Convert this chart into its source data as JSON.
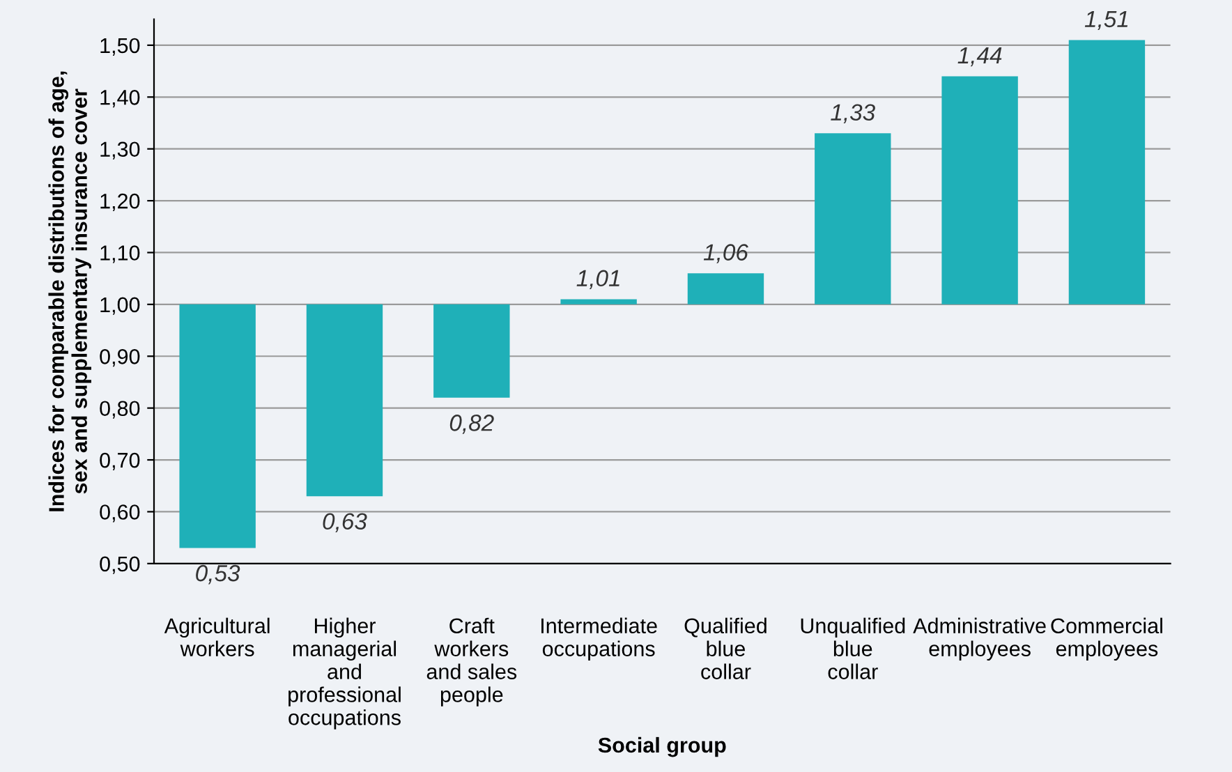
{
  "chart_data": {
    "type": "bar",
    "xlabel": "Social group",
    "ylabel": "Indices for comparable distributions of age,\nsex and supplementary insurance cover",
    "categories": [
      "Agricultural\nworkers",
      "Higher\nmanagerial\nand\nprofessional\noccupations",
      "Craft\nworkers\nand sales\npeople",
      "Intermediate\noccupations",
      "Qualified\nblue\ncollar",
      "Unqualified\nblue\ncollar",
      "Administrative\nemployees",
      "Commercial\nemployees"
    ],
    "base": [
      1,
      1,
      1,
      1,
      1,
      1,
      1,
      1
    ],
    "values": [
      -0.47,
      -0.37,
      -0.18,
      0.01,
      0.06,
      0.33,
      0.44,
      0.51
    ],
    "value_labels": [
      "0,53",
      "0,63",
      "0,82",
      "1,01",
      "1,06",
      "1,33",
      "1,44",
      "1,51"
    ],
    "color": "#1fb0b8",
    "ylim": [
      0.5,
      1.55
    ],
    "yticks": [
      {
        "value": 0.5,
        "label": "0,50"
      },
      {
        "value": 0.6,
        "label": "0,60"
      },
      {
        "value": 0.7,
        "label": "0,70"
      },
      {
        "value": 0.8,
        "label": "0,80"
      },
      {
        "value": 0.9,
        "label": "0,90"
      },
      {
        "value": 1.0,
        "label": "1,00"
      },
      {
        "value": 1.1,
        "label": "1,10"
      },
      {
        "value": 1.2,
        "label": "1,20"
      },
      {
        "value": 1.3,
        "label": "1,30"
      },
      {
        "value": 1.4,
        "label": "1,40"
      },
      {
        "value": 1.5,
        "label": "1,50"
      }
    ],
    "grid": "y",
    "legend": false
  }
}
